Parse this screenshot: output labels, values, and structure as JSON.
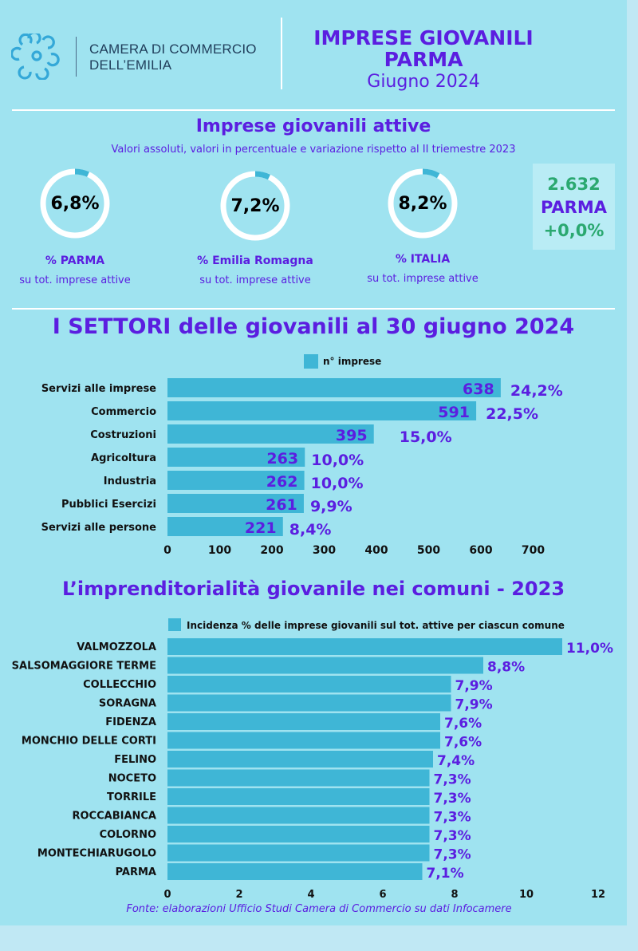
{
  "header": {
    "org_line1": "CAMERA DI COMMERCIO",
    "org_line2": "DELL’EMILIA",
    "title_line1": "IMPRESE GIOVANILI",
    "title_line2": "PARMA",
    "title_line3": "Giugno 2024"
  },
  "active": {
    "title": "Imprese giovanili attive",
    "subtitle": "Valori assoluti, valori in percentuale e variazione rispetto al II triemestre 2023",
    "rings": [
      {
        "value": "6,8%",
        "pct": 6.8,
        "label1": "%  PARMA",
        "label2": "su tot. imprese attive",
        "color": "#2aa870"
      },
      {
        "value": "7,2%",
        "pct": 7.2,
        "label1": "%  Emilia Romagna",
        "label2": "su tot. imprese attive",
        "color": "#5b1ee0"
      },
      {
        "value": "8,2%",
        "pct": 8.2,
        "label1": "%  ITALIA",
        "label2": "su tot. imprese attive",
        "color": "#5b1ee0"
      }
    ],
    "box": {
      "count": "2.632",
      "name": "PARMA",
      "change": "+0,0%"
    }
  },
  "colors": {
    "accent": "#5b1ee0",
    "bar": "#3fb6d6",
    "green": "#2aa870",
    "ring": "#ffffff"
  },
  "chart_data": [
    {
      "type": "bar",
      "orientation": "horizontal",
      "title": "I SETTORI  delle giovanili  al 30 giugno 2024",
      "legend": "n° imprese",
      "categories": [
        "Servizi alle imprese",
        "Commercio",
        "Costruzioni",
        "Agricoltura",
        "Industria",
        "Pubblici Esercizi",
        "Servizi alle persone"
      ],
      "values": [
        638,
        591,
        395,
        263,
        262,
        261,
        221
      ],
      "value_labels": [
        "638",
        "591",
        "395",
        "263",
        "262",
        "261",
        "221"
      ],
      "pct_labels": [
        "24,2%",
        "22,5%",
        "15,0%",
        "10,0%",
        "10,0%",
        "9,9%",
        "8,4%"
      ],
      "ticks": [
        "0",
        "100",
        "200",
        "300",
        "400",
        "500",
        "600",
        "700"
      ],
      "xlim": [
        0,
        700
      ]
    },
    {
      "type": "bar",
      "orientation": "horizontal",
      "title": "L’imprenditorialità giovanile nei comuni  - 2023",
      "legend": "Incidenza % delle imprese giovanili sul tot. attive per ciascun comune",
      "categories": [
        "VALMOZZOLA",
        "SALSOMAGGIORE TERME",
        "COLLECCHIO",
        "SORAGNA",
        "FIDENZA",
        "MONCHIO DELLE CORTI",
        "FELINO",
        "NOCETO",
        "TORRILE",
        "ROCCABIANCA",
        "COLORNO",
        "MONTECHIARUGOLO",
        "PARMA"
      ],
      "values": [
        11.0,
        8.8,
        7.9,
        7.9,
        7.6,
        7.6,
        7.4,
        7.3,
        7.3,
        7.3,
        7.3,
        7.3,
        7.1
      ],
      "value_labels": [
        "11,0%",
        "8,8%",
        "7,9%",
        "7,9%",
        "7,6%",
        "7,6%",
        "7,4%",
        "7,3%",
        "7,3%",
        "7,3%",
        "7,3%",
        "7,3%",
        "7,1%"
      ],
      "ticks": [
        "0",
        "2",
        "4",
        "6",
        "8",
        "10",
        "12"
      ],
      "xlim": [
        0,
        12
      ]
    }
  ],
  "footer": "Fonte: elaborazioni Ufficio Studi Camera di Commercio su dati Infocamere"
}
